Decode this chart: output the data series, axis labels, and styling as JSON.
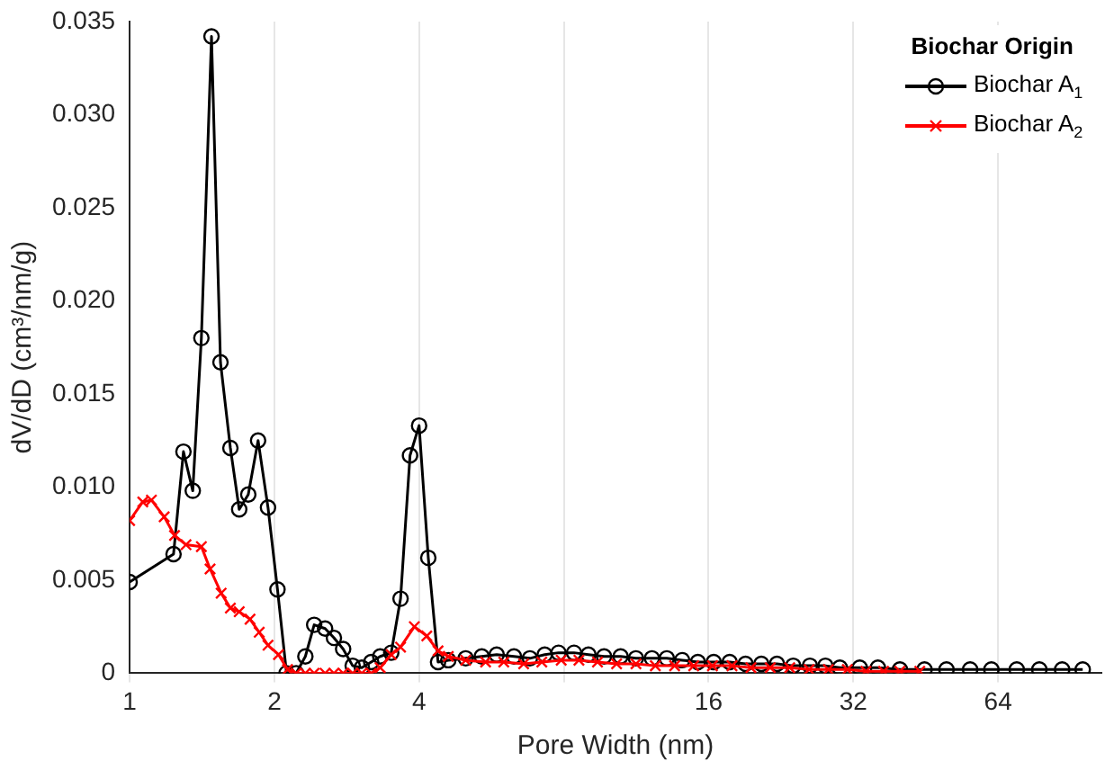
{
  "chart_data": {
    "type": "line",
    "xlabel": "Pore Width (nm)",
    "ylabel": "dV/dD (cm³/nm/g)",
    "legend_title": "Biochar Origin",
    "legend": "top right",
    "grid": "x",
    "log": "x",
    "xlim": [
      1,
      105
    ],
    "xticks": [
      1,
      2,
      4,
      {
        "value": 8,
        "label": null
      },
      16,
      32,
      64
    ],
    "ylim": [
      0,
      0.035
    ],
    "yticks": [
      0,
      0.005,
      {
        "value": 0.01,
        "label": "0.010"
      },
      0.015,
      {
        "value": 0.02,
        "label": "0.020"
      },
      0.025,
      {
        "value": 0.03,
        "label": "0.030"
      },
      0.035
    ],
    "series": [
      {
        "name": "Biochar A$_{1}$",
        "color": "#000000",
        "marker": "circle",
        "x": [
          1,
          1.234,
          1.294,
          1.353,
          1.41,
          1.48,
          1.545,
          1.62,
          1.69,
          1.765,
          1.85,
          1.94,
          2.03,
          2.12,
          2.22,
          2.32,
          2.42,
          2.55,
          2.66,
          2.78,
          2.91,
          3.04,
          3.18,
          3.32,
          3.5,
          3.66,
          3.83,
          4.0,
          4.18,
          4.38,
          4.6,
          5.0,
          5.4,
          5.8,
          6.3,
          6.8,
          7.3,
          7.8,
          8.4,
          9.0,
          9.7,
          10.5,
          11.3,
          12.2,
          13.1,
          14.1,
          15.2,
          16.4,
          17.7,
          19.1,
          20.6,
          22.2,
          24,
          26,
          28,
          30,
          33,
          36,
          40,
          45,
          50,
          56,
          62,
          70,
          78,
          87,
          96
        ],
        "values": [
          0.0049,
          0.0064,
          0.0119,
          0.0098,
          0.018,
          0.0342,
          0.0167,
          0.0121,
          0.0088,
          0.0096,
          0.0125,
          0.0089,
          0.0045,
          0.0,
          0.0,
          0.0009,
          0.0026,
          0.0024,
          0.0019,
          0.0013,
          0.0004,
          0.0003,
          0.0006,
          0.0009,
          0.0011,
          0.004,
          0.0117,
          0.0133,
          0.0062,
          0.0006,
          0.0007,
          0.0008,
          0.0009,
          0.001,
          0.0009,
          0.0008,
          0.001,
          0.0011,
          0.0011,
          0.001,
          0.0009,
          0.0009,
          0.0008,
          0.0008,
          0.0008,
          0.0007,
          0.0006,
          0.0006,
          0.0006,
          0.0005,
          0.0005,
          0.0005,
          0.0004,
          0.0004,
          0.0004,
          0.0003,
          0.0003,
          0.0003,
          0.0002,
          0.0002,
          0.0002,
          0.0002,
          0.0002,
          0.0002,
          0.0002,
          0.0002,
          0.0002
        ]
      },
      {
        "name": "Biochar A$_{2}$",
        "color": "#ff0000",
        "marker": "cross",
        "x": [
          1,
          1.065,
          1.11,
          1.18,
          1.24,
          1.31,
          1.41,
          1.47,
          1.55,
          1.62,
          1.69,
          1.78,
          1.86,
          1.94,
          2.04,
          2.13,
          2.22,
          2.32,
          2.42,
          2.55,
          2.66,
          2.78,
          2.91,
          3.04,
          3.18,
          3.32,
          3.5,
          3.66,
          3.91,
          4.15,
          4.38,
          4.6,
          5.0,
          5.5,
          6.0,
          6.6,
          7.2,
          7.9,
          8.6,
          9.4,
          10.3,
          11.3,
          12.4,
          13.6,
          14.9,
          16.3,
          17.9,
          19.6,
          21.5,
          23.6,
          25.9,
          28.4,
          31.1,
          34,
          37,
          40,
          44
        ],
        "values": [
          0.0082,
          0.0092,
          0.0093,
          0.0084,
          0.0074,
          0.0069,
          0.0068,
          0.0056,
          0.0043,
          0.0035,
          0.0033,
          0.0029,
          0.0022,
          0.0015,
          0.001,
          0.0002,
          0,
          0,
          0,
          0,
          0,
          0,
          0,
          0,
          0,
          0.0003,
          0.001,
          0.0014,
          0.0025,
          0.002,
          0.0012,
          0.0009,
          0.0007,
          0.0006,
          0.0006,
          0.0005,
          0.0006,
          0.0007,
          0.0007,
          0.0006,
          0.0005,
          0.0005,
          0.0004,
          0.0004,
          0.0004,
          0.0004,
          0.0004,
          0.0003,
          0.0003,
          0.0003,
          0.0002,
          0.0002,
          0.0002,
          0.0001,
          0.0001,
          0.0001,
          0.0001
        ]
      }
    ]
  }
}
